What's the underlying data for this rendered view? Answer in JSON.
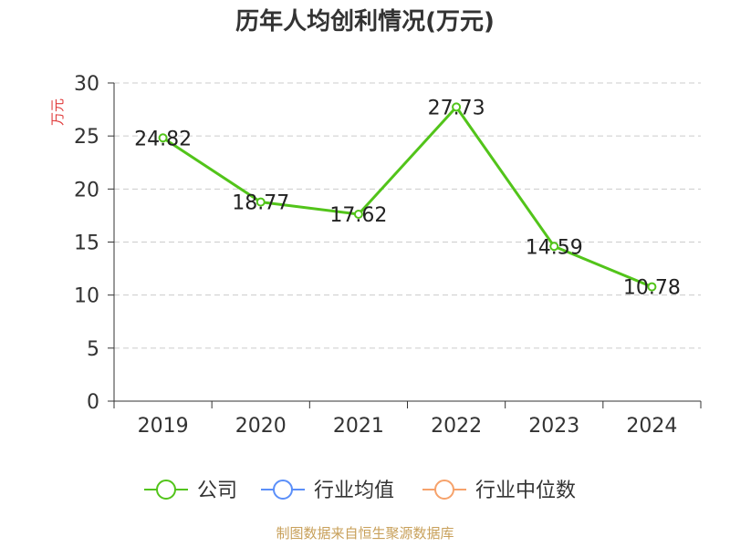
{
  "chart_data": {
    "type": "line",
    "title": "历年人均创利情况(万元)",
    "ylabel": "万元",
    "categories": [
      "2019",
      "2020",
      "2021",
      "2022",
      "2023",
      "2024"
    ],
    "ylim": [
      0,
      30
    ],
    "yticks": [
      0,
      5,
      10,
      15,
      20,
      25,
      30
    ],
    "grid": true,
    "series": [
      {
        "name": "公司",
        "values": [
          24.82,
          18.77,
          17.62,
          27.73,
          14.59,
          10.78
        ],
        "color": "#52c41a",
        "labels": [
          "24.82",
          "18.77",
          "17.62",
          "27.73",
          "14.59",
          "10.78"
        ]
      }
    ],
    "legend": {
      "position": "bottom",
      "items": [
        {
          "name": "公司",
          "color": "#52c41a"
        },
        {
          "name": "行业均值",
          "color": "#5b8ff9"
        },
        {
          "name": "行业中位数",
          "color": "#f6a26b"
        }
      ]
    },
    "source": "制图数据来自恒生聚源数据库",
    "colors": {
      "axis": "#333333",
      "grid": "#cccccc",
      "ylabel": "#e03c3c",
      "source": "#c8a05a"
    }
  }
}
